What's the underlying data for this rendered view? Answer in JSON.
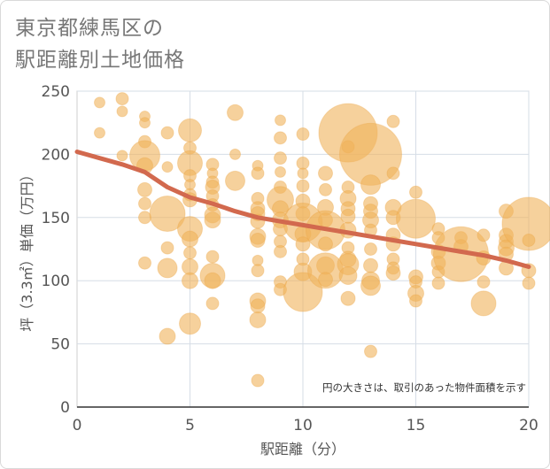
{
  "title_lines": [
    "東京都練馬区の",
    "駅距離別土地価格"
  ],
  "chart_data": {
    "type": "scatter",
    "title": "東京都練馬区の駅距離別土地価格",
    "xlabel": "駅距離（分）",
    "ylabel": "坪（3.3㎡）単価（万円）",
    "xlim": [
      0,
      20
    ],
    "ylim": [
      0,
      250
    ],
    "xticks": [
      0,
      5,
      10,
      15,
      20
    ],
    "yticks": [
      0,
      50,
      100,
      150,
      200,
      250
    ],
    "grid": true,
    "bubble_color": "#f0b35a",
    "trend_color": "#d2694e",
    "note": "円の大きさは、取引のあった物件面積を示す",
    "points": [
      {
        "x": 1,
        "y": 241,
        "r": 6
      },
      {
        "x": 1,
        "y": 217,
        "r": 6
      },
      {
        "x": 2,
        "y": 244,
        "r": 7
      },
      {
        "x": 2,
        "y": 234,
        "r": 6
      },
      {
        "x": 2,
        "y": 199,
        "r": 6
      },
      {
        "x": 3,
        "y": 230,
        "r": 6
      },
      {
        "x": 3,
        "y": 225,
        "r": 6
      },
      {
        "x": 3,
        "y": 210,
        "r": 7
      },
      {
        "x": 3,
        "y": 199,
        "r": 17
      },
      {
        "x": 3,
        "y": 191,
        "r": 9
      },
      {
        "x": 3,
        "y": 172,
        "r": 8
      },
      {
        "x": 3,
        "y": 161,
        "r": 7
      },
      {
        "x": 3,
        "y": 150,
        "r": 7
      },
      {
        "x": 3,
        "y": 114,
        "r": 7
      },
      {
        "x": 4,
        "y": 217,
        "r": 7
      },
      {
        "x": 4,
        "y": 190,
        "r": 6
      },
      {
        "x": 4,
        "y": 153,
        "r": 20
      },
      {
        "x": 4,
        "y": 126,
        "r": 7
      },
      {
        "x": 4,
        "y": 110,
        "r": 11
      },
      {
        "x": 4,
        "y": 56,
        "r": 9
      },
      {
        "x": 5,
        "y": 219,
        "r": 13
      },
      {
        "x": 5,
        "y": 205,
        "r": 7
      },
      {
        "x": 5,
        "y": 193,
        "r": 14
      },
      {
        "x": 5,
        "y": 183,
        "r": 7
      },
      {
        "x": 5,
        "y": 176,
        "r": 6
      },
      {
        "x": 5,
        "y": 168,
        "r": 7
      },
      {
        "x": 5,
        "y": 164,
        "r": 8
      },
      {
        "x": 5,
        "y": 141,
        "r": 14
      },
      {
        "x": 5,
        "y": 133,
        "r": 9
      },
      {
        "x": 5,
        "y": 122,
        "r": 7
      },
      {
        "x": 5,
        "y": 111,
        "r": 9
      },
      {
        "x": 5,
        "y": 100,
        "r": 9
      },
      {
        "x": 5,
        "y": 66,
        "r": 12
      },
      {
        "x": 6,
        "y": 192,
        "r": 7
      },
      {
        "x": 6,
        "y": 185,
        "r": 6
      },
      {
        "x": 6,
        "y": 178,
        "r": 7
      },
      {
        "x": 6,
        "y": 174,
        "r": 8
      },
      {
        "x": 6,
        "y": 167,
        "r": 7
      },
      {
        "x": 6,
        "y": 160,
        "r": 7
      },
      {
        "x": 6,
        "y": 152,
        "r": 9
      },
      {
        "x": 6,
        "y": 148,
        "r": 9
      },
      {
        "x": 6,
        "y": 119,
        "r": 7
      },
      {
        "x": 6,
        "y": 104,
        "r": 14
      },
      {
        "x": 6,
        "y": 100,
        "r": 9
      },
      {
        "x": 6,
        "y": 82,
        "r": 7
      },
      {
        "x": 7,
        "y": 233,
        "r": 9
      },
      {
        "x": 7,
        "y": 200,
        "r": 6
      },
      {
        "x": 7,
        "y": 179,
        "r": 11
      },
      {
        "x": 8,
        "y": 191,
        "r": 6
      },
      {
        "x": 8,
        "y": 185,
        "r": 7
      },
      {
        "x": 8,
        "y": 165,
        "r": 7
      },
      {
        "x": 8,
        "y": 157,
        "r": 8
      },
      {
        "x": 8,
        "y": 153,
        "r": 8
      },
      {
        "x": 8,
        "y": 147,
        "r": 8
      },
      {
        "x": 8,
        "y": 135,
        "r": 9
      },
      {
        "x": 8,
        "y": 132,
        "r": 8
      },
      {
        "x": 8,
        "y": 116,
        "r": 6
      },
      {
        "x": 8,
        "y": 108,
        "r": 7
      },
      {
        "x": 8,
        "y": 84,
        "r": 9
      },
      {
        "x": 8,
        "y": 80,
        "r": 8
      },
      {
        "x": 8,
        "y": 69,
        "r": 9
      },
      {
        "x": 8,
        "y": 21,
        "r": 7
      },
      {
        "x": 9,
        "y": 227,
        "r": 6
      },
      {
        "x": 9,
        "y": 213,
        "r": 7
      },
      {
        "x": 9,
        "y": 197,
        "r": 7
      },
      {
        "x": 9,
        "y": 186,
        "r": 6
      },
      {
        "x": 9,
        "y": 174,
        "r": 7
      },
      {
        "x": 9,
        "y": 164,
        "r": 15
      },
      {
        "x": 9,
        "y": 157,
        "r": 9
      },
      {
        "x": 9,
        "y": 148,
        "r": 9
      },
      {
        "x": 9,
        "y": 141,
        "r": 8
      },
      {
        "x": 9,
        "y": 131,
        "r": 7
      },
      {
        "x": 9,
        "y": 123,
        "r": 7
      },
      {
        "x": 9,
        "y": 99,
        "r": 7
      },
      {
        "x": 9,
        "y": 93,
        "r": 7
      },
      {
        "x": 10,
        "y": 216,
        "r": 7
      },
      {
        "x": 10,
        "y": 193,
        "r": 7
      },
      {
        "x": 10,
        "y": 185,
        "r": 6
      },
      {
        "x": 10,
        "y": 175,
        "r": 7
      },
      {
        "x": 10,
        "y": 163,
        "r": 8
      },
      {
        "x": 10,
        "y": 153,
        "r": 8
      },
      {
        "x": 10,
        "y": 146,
        "r": 22
      },
      {
        "x": 10,
        "y": 137,
        "r": 9
      },
      {
        "x": 10,
        "y": 129,
        "r": 8
      },
      {
        "x": 10,
        "y": 117,
        "r": 7
      },
      {
        "x": 10,
        "y": 107,
        "r": 10
      },
      {
        "x": 10,
        "y": 91,
        "r": 22
      },
      {
        "x": 11,
        "y": 185,
        "r": 8
      },
      {
        "x": 11,
        "y": 172,
        "r": 7
      },
      {
        "x": 11,
        "y": 158,
        "r": 9
      },
      {
        "x": 11,
        "y": 148,
        "r": 8
      },
      {
        "x": 11,
        "y": 140,
        "r": 22
      },
      {
        "x": 11,
        "y": 129,
        "r": 8
      },
      {
        "x": 11,
        "y": 112,
        "r": 10
      },
      {
        "x": 11,
        "y": 108,
        "r": 20
      },
      {
        "x": 11,
        "y": 101,
        "r": 8
      },
      {
        "x": 12,
        "y": 217,
        "r": 33
      },
      {
        "x": 12,
        "y": 206,
        "r": 7
      },
      {
        "x": 12,
        "y": 174,
        "r": 7
      },
      {
        "x": 12,
        "y": 165,
        "r": 9
      },
      {
        "x": 12,
        "y": 157,
        "r": 8
      },
      {
        "x": 12,
        "y": 151,
        "r": 8
      },
      {
        "x": 12,
        "y": 140,
        "r": 9
      },
      {
        "x": 12,
        "y": 126,
        "r": 7
      },
      {
        "x": 12,
        "y": 117,
        "r": 9
      },
      {
        "x": 12,
        "y": 113,
        "r": 12
      },
      {
        "x": 12,
        "y": 104,
        "r": 10
      },
      {
        "x": 12,
        "y": 86,
        "r": 8
      },
      {
        "x": 13,
        "y": 200,
        "r": 35
      },
      {
        "x": 13,
        "y": 176,
        "r": 11
      },
      {
        "x": 13,
        "y": 161,
        "r": 8
      },
      {
        "x": 13,
        "y": 155,
        "r": 8
      },
      {
        "x": 13,
        "y": 148,
        "r": 9
      },
      {
        "x": 13,
        "y": 140,
        "r": 7
      },
      {
        "x": 13,
        "y": 125,
        "r": 7
      },
      {
        "x": 13,
        "y": 112,
        "r": 8
      },
      {
        "x": 13,
        "y": 100,
        "r": 10
      },
      {
        "x": 13,
        "y": 96,
        "r": 11
      },
      {
        "x": 13,
        "y": 44,
        "r": 7
      },
      {
        "x": 14,
        "y": 226,
        "r": 7
      },
      {
        "x": 14,
        "y": 185,
        "r": 7
      },
      {
        "x": 14,
        "y": 158,
        "r": 9
      },
      {
        "x": 14,
        "y": 150,
        "r": 8
      },
      {
        "x": 14,
        "y": 136,
        "r": 8
      },
      {
        "x": 14,
        "y": 129,
        "r": 8
      },
      {
        "x": 14,
        "y": 117,
        "r": 7
      },
      {
        "x": 14,
        "y": 110,
        "r": 7
      },
      {
        "x": 14,
        "y": 106,
        "r": 8
      },
      {
        "x": 15,
        "y": 170,
        "r": 7
      },
      {
        "x": 15,
        "y": 149,
        "r": 22
      },
      {
        "x": 15,
        "y": 103,
        "r": 8
      },
      {
        "x": 15,
        "y": 99,
        "r": 7
      },
      {
        "x": 15,
        "y": 90,
        "r": 9
      },
      {
        "x": 15,
        "y": 84,
        "r": 7
      },
      {
        "x": 16,
        "y": 141,
        "r": 7
      },
      {
        "x": 16,
        "y": 134,
        "r": 7
      },
      {
        "x": 16,
        "y": 123,
        "r": 8
      },
      {
        "x": 16,
        "y": 114,
        "r": 8
      },
      {
        "x": 16,
        "y": 107,
        "r": 7
      },
      {
        "x": 16,
        "y": 98,
        "r": 7
      },
      {
        "x": 17,
        "y": 134,
        "r": 7
      },
      {
        "x": 17,
        "y": 127,
        "r": 8
      },
      {
        "x": 17,
        "y": 121,
        "r": 31
      },
      {
        "x": 18,
        "y": 136,
        "r": 7
      },
      {
        "x": 18,
        "y": 118,
        "r": 8
      },
      {
        "x": 18,
        "y": 99,
        "r": 7
      },
      {
        "x": 18,
        "y": 82,
        "r": 14
      },
      {
        "x": 19,
        "y": 155,
        "r": 8
      },
      {
        "x": 19,
        "y": 136,
        "r": 8
      },
      {
        "x": 19,
        "y": 131,
        "r": 8
      },
      {
        "x": 19,
        "y": 126,
        "r": 9
      },
      {
        "x": 19,
        "y": 121,
        "r": 8
      },
      {
        "x": 19,
        "y": 110,
        "r": 8
      },
      {
        "x": 20,
        "y": 145,
        "r": 30
      },
      {
        "x": 20,
        "y": 132,
        "r": 7
      },
      {
        "x": 20,
        "y": 108,
        "r": 8
      },
      {
        "x": 20,
        "y": 98,
        "r": 7
      }
    ],
    "trend": [
      {
        "x": 0,
        "y": 202
      },
      {
        "x": 1,
        "y": 197
      },
      {
        "x": 2,
        "y": 192
      },
      {
        "x": 3,
        "y": 186
      },
      {
        "x": 4,
        "y": 174
      },
      {
        "x": 5,
        "y": 166
      },
      {
        "x": 6,
        "y": 161
      },
      {
        "x": 7,
        "y": 155
      },
      {
        "x": 8,
        "y": 150
      },
      {
        "x": 9,
        "y": 147
      },
      {
        "x": 10,
        "y": 144
      },
      {
        "x": 11,
        "y": 141
      },
      {
        "x": 12,
        "y": 138
      },
      {
        "x": 13,
        "y": 135
      },
      {
        "x": 14,
        "y": 132
      },
      {
        "x": 15,
        "y": 129
      },
      {
        "x": 16,
        "y": 126
      },
      {
        "x": 17,
        "y": 123
      },
      {
        "x": 18,
        "y": 120
      },
      {
        "x": 19,
        "y": 116
      },
      {
        "x": 20,
        "y": 111
      }
    ]
  }
}
